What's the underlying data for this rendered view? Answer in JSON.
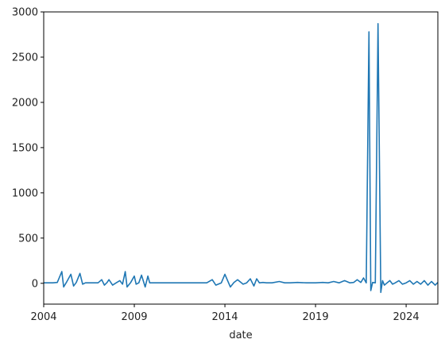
{
  "chart_data": {
    "type": "line",
    "title": "",
    "xlabel": "date",
    "ylabel": "",
    "xlim": [
      2004,
      2025.75
    ],
    "ylim": [
      -230,
      3000
    ],
    "grid": false,
    "legend": "none",
    "x_ticks": [
      2004,
      2009,
      2014,
      2019,
      2024
    ],
    "y_ticks": [
      0,
      500,
      1000,
      1500,
      2000,
      2500,
      3000
    ],
    "series": [
      {
        "color": "#1f77b4",
        "x": [
          2004.0,
          2004.25,
          2004.5,
          2004.75,
          2005.0,
          2005.1,
          2005.25,
          2005.5,
          2005.65,
          2005.8,
          2006.0,
          2006.15,
          2006.3,
          2006.6,
          2007.0,
          2007.2,
          2007.35,
          2007.5,
          2007.6,
          2007.8,
          2008.0,
          2008.2,
          2008.35,
          2008.5,
          2008.6,
          2008.8,
          2009.0,
          2009.1,
          2009.25,
          2009.4,
          2009.6,
          2009.75,
          2009.85,
          2010.0,
          2010.3,
          2011.0,
          2012.0,
          2012.5,
          2013.0,
          2013.3,
          2013.5,
          2013.8,
          2014.0,
          2014.3,
          2014.5,
          2014.7,
          2015.0,
          2015.2,
          2015.4,
          2015.6,
          2015.75,
          2015.9,
          2016.1,
          2016.3,
          2016.6,
          2017.0,
          2017.3,
          2017.6,
          2018.0,
          2018.5,
          2019.0,
          2019.4,
          2019.7,
          2020.0,
          2020.3,
          2020.6,
          2020.9,
          2021.1,
          2021.3,
          2021.5,
          2021.65,
          2021.8,
          2021.95,
          2022.05,
          2022.15,
          2022.3,
          2022.45,
          2022.6,
          2022.7,
          2022.8,
          2022.95,
          2023.1,
          2023.25,
          2023.4,
          2023.6,
          2023.8,
          2024.0,
          2024.2,
          2024.4,
          2024.6,
          2024.8,
          2025.0,
          2025.2,
          2025.4,
          2025.6,
          2025.75
        ],
        "y": [
          5,
          5,
          5,
          10,
          130,
          -40,
          10,
          100,
          -30,
          10,
          110,
          -10,
          5,
          5,
          5,
          40,
          -20,
          10,
          40,
          -20,
          5,
          30,
          -10,
          130,
          -40,
          10,
          80,
          -10,
          5,
          90,
          -40,
          80,
          5,
          5,
          5,
          5,
          5,
          5,
          5,
          40,
          -20,
          5,
          100,
          -40,
          10,
          40,
          -10,
          5,
          50,
          -30,
          50,
          5,
          10,
          5,
          5,
          20,
          5,
          5,
          10,
          5,
          5,
          10,
          5,
          20,
          5,
          30,
          5,
          10,
          40,
          10,
          60,
          5,
          2780,
          -80,
          10,
          5,
          2870,
          -100,
          30,
          -20,
          5,
          30,
          -10,
          5,
          30,
          -10,
          5,
          30,
          -10,
          20,
          -10,
          30,
          -20,
          20,
          -20,
          10
        ]
      }
    ]
  }
}
